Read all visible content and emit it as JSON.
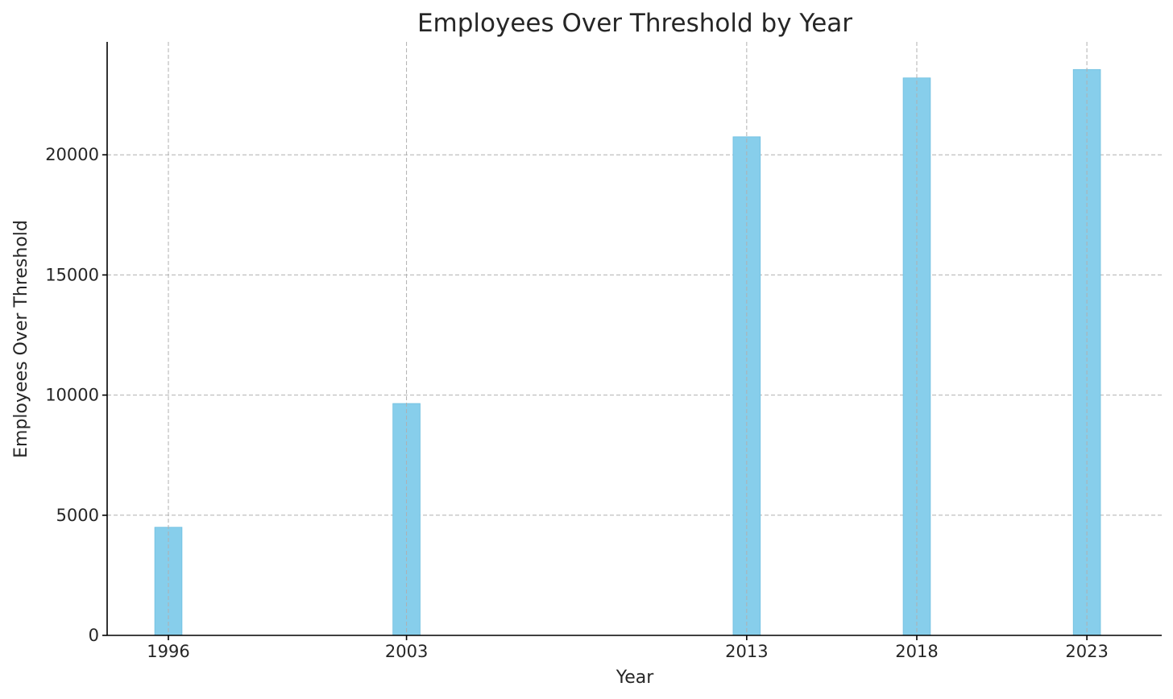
{
  "chart_data": {
    "type": "bar",
    "title": "Employees Over Threshold by Year",
    "xlabel": "Year",
    "ylabel": "Employees Over Threshold",
    "categories": [
      "1996",
      "2003",
      "2013",
      "2018",
      "2023"
    ],
    "x": [
      1996,
      2003,
      2013,
      2018,
      2023
    ],
    "values": [
      4500,
      9650,
      20750,
      23200,
      23550
    ],
    "xlim": [
      1994.2,
      2025.2
    ],
    "ylim": [
      0,
      24700
    ],
    "yticks": [
      0,
      5000,
      10000,
      15000,
      20000
    ],
    "ytick_labels": [
      "0",
      "5000",
      "10000",
      "15000",
      "20000"
    ],
    "bar_width_years": 0.8,
    "grid": true,
    "colors": {
      "bar": "#87ceeb",
      "bar_edge": "#6fbfe0",
      "grid": "#b0b0b0",
      "axis": "#000000"
    }
  }
}
